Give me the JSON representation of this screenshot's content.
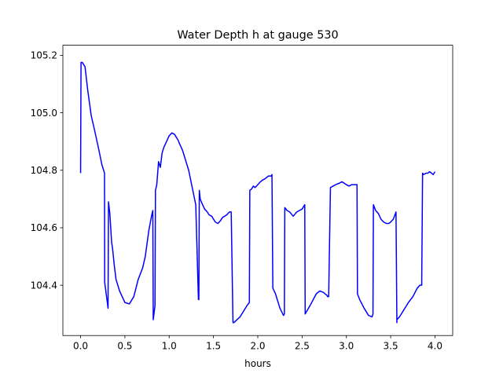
{
  "chart_data": {
    "type": "line",
    "title": "Water Depth h at gauge 530",
    "xlabel": "hours",
    "ylabel": "",
    "xlim": [
      -0.2,
      4.2
    ],
    "ylim": [
      104.225,
      105.235
    ],
    "grid": false,
    "x_ticks": [
      0.0,
      0.5,
      1.0,
      1.5,
      2.0,
      2.5,
      3.0,
      3.5,
      4.0
    ],
    "x_tick_labels": [
      "0.0",
      "0.5",
      "1.0",
      "1.5",
      "2.0",
      "2.5",
      "3.0",
      "3.5",
      "4.0"
    ],
    "y_ticks": [
      104.4,
      104.6,
      104.8,
      105.0,
      105.2
    ],
    "y_tick_labels": [
      "104.4",
      "104.6",
      "104.8",
      "105.0",
      "105.2"
    ],
    "series": [
      {
        "color": "#0000ff",
        "x": [
          0.0,
          0.005,
          0.02,
          0.05,
          0.08,
          0.12,
          0.15,
          0.2,
          0.24,
          0.27,
          0.272,
          0.31,
          0.315,
          0.33,
          0.35,
          0.36,
          0.38,
          0.4,
          0.44,
          0.5,
          0.55,
          0.6,
          0.65,
          0.7,
          0.73,
          0.77,
          0.8,
          0.815,
          0.82,
          0.84,
          0.845,
          0.86,
          0.88,
          0.9,
          0.92,
          0.94,
          0.97,
          1.0,
          1.03,
          1.06,
          1.08,
          1.1,
          1.12,
          1.15,
          1.18,
          1.22,
          1.26,
          1.3,
          1.33,
          1.335,
          1.34,
          1.35,
          1.37,
          1.4,
          1.43,
          1.45,
          1.48,
          1.5,
          1.52,
          1.55,
          1.58,
          1.6,
          1.65,
          1.68,
          1.7,
          1.72,
          1.73,
          1.8,
          1.88,
          1.905,
          1.91,
          1.93,
          1.95,
          1.97,
          2.0,
          2.03,
          2.05,
          2.08,
          2.1,
          2.12,
          2.15,
          2.16,
          2.17,
          2.2,
          2.25,
          2.29,
          2.3,
          2.305,
          2.33,
          2.36,
          2.4,
          2.44,
          2.47,
          2.5,
          2.52,
          2.53,
          2.535,
          2.6,
          2.66,
          2.7,
          2.74,
          2.78,
          2.79,
          2.8,
          2.82,
          2.85,
          2.88,
          2.92,
          2.95,
          3.0,
          3.03,
          3.06,
          3.08,
          3.1,
          3.12,
          3.125,
          3.15,
          3.2,
          3.25,
          3.29,
          3.3,
          3.305,
          3.33,
          3.36,
          3.39,
          3.42,
          3.45,
          3.48,
          3.5,
          3.53,
          3.56,
          3.57,
          3.57,
          3.6,
          3.65,
          3.7,
          3.75,
          3.8,
          3.83,
          3.85,
          3.86,
          3.87,
          3.9,
          3.92,
          3.94,
          3.96,
          3.98,
          4.0
        ],
        "y": [
          104.79,
          105.175,
          105.175,
          105.16,
          105.08,
          104.99,
          104.95,
          104.88,
          104.82,
          104.79,
          104.41,
          104.32,
          104.69,
          104.65,
          104.55,
          104.53,
          104.47,
          104.42,
          104.38,
          104.34,
          104.335,
          104.36,
          104.42,
          104.46,
          104.5,
          104.59,
          104.64,
          104.66,
          104.28,
          104.33,
          104.73,
          104.75,
          104.83,
          104.81,
          104.86,
          104.88,
          104.9,
          104.92,
          104.93,
          104.925,
          104.915,
          104.905,
          104.89,
          104.87,
          104.84,
          104.8,
          104.74,
          104.68,
          104.35,
          104.35,
          104.73,
          104.7,
          104.685,
          104.665,
          104.655,
          104.645,
          104.64,
          104.63,
          104.62,
          104.615,
          104.625,
          104.635,
          104.645,
          104.655,
          104.655,
          104.27,
          104.27,
          104.29,
          104.33,
          104.34,
          104.73,
          104.735,
          104.745,
          104.74,
          104.75,
          104.76,
          104.765,
          104.77,
          104.775,
          104.78,
          104.78,
          104.785,
          104.39,
          104.37,
          104.32,
          104.295,
          104.3,
          104.67,
          104.66,
          104.655,
          104.64,
          104.655,
          104.66,
          104.665,
          104.675,
          104.68,
          104.3,
          104.335,
          104.37,
          104.38,
          104.375,
          104.365,
          104.36,
          104.36,
          104.74,
          104.745,
          104.75,
          104.755,
          104.76,
          104.75,
          104.745,
          104.75,
          104.75,
          104.75,
          104.75,
          104.37,
          104.35,
          104.32,
          104.295,
          104.29,
          104.3,
          104.68,
          104.66,
          104.65,
          104.63,
          104.62,
          104.615,
          104.615,
          104.62,
          104.63,
          104.655,
          104.27,
          104.28,
          104.29,
          104.315,
          104.34,
          104.36,
          104.39,
          104.4,
          104.4,
          104.79,
          104.785,
          104.79,
          104.79,
          104.795,
          104.79,
          104.785,
          104.795
        ]
      }
    ]
  }
}
